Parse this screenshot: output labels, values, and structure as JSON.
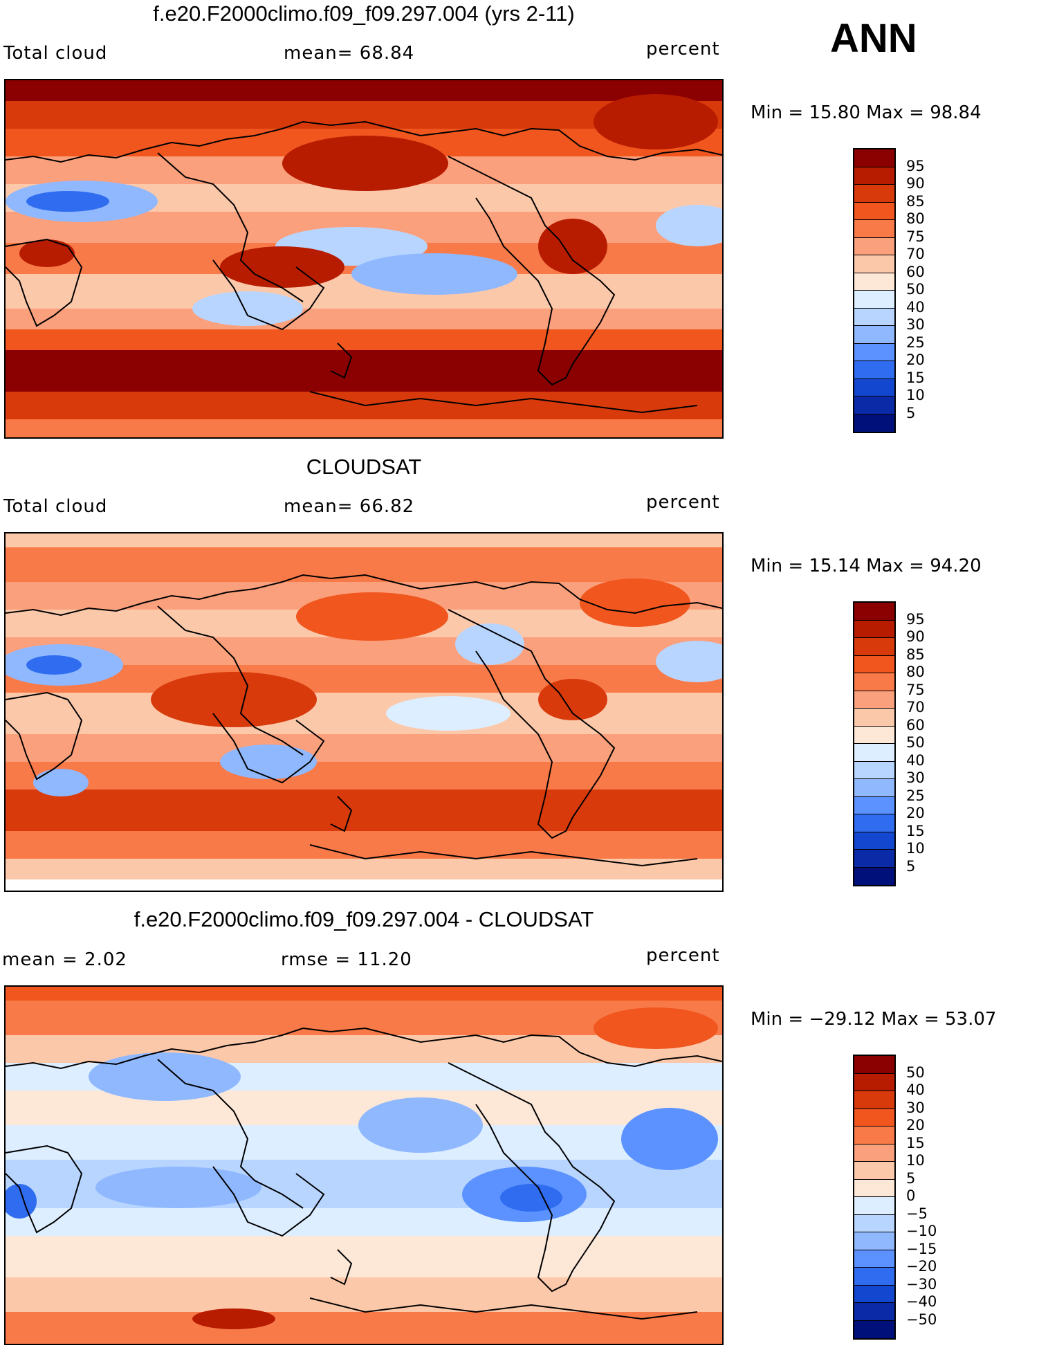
{
  "season": "ANN",
  "panels": [
    {
      "id": "model",
      "title": "f.e20.F2000climo.f09_f09.297.004 (yrs 2-11)",
      "left_label": "Total cloud",
      "center_label": "mean=   68.84",
      "right_label": "percent",
      "minmax": "Min =   15.80 Max =   98.84",
      "colorbar": {
        "colors": [
          "#8b0000",
          "#b71c00",
          "#d83a0c",
          "#f0561e",
          "#f97a49",
          "#fba07c",
          "#fcc8aa",
          "#fde8d8",
          "#dceeff",
          "#b8d5ff",
          "#8fb8ff",
          "#5b92ff",
          "#2f6cf0",
          "#1447d0",
          "#0a2aa8",
          "#00107a"
        ],
        "labels": [
          "95",
          "90",
          "85",
          "80",
          "75",
          "70",
          "60",
          "50",
          "40",
          "30",
          "25",
          "20",
          "15",
          "10",
          "5"
        ]
      },
      "field_scale": "abs"
    },
    {
      "id": "obs",
      "title": "CLOUDSAT",
      "left_label": "Total cloud",
      "center_label": "mean=   66.82",
      "right_label": "percent",
      "minmax": "Min =   15.14 Max =   94.20",
      "colorbar": {
        "colors": [
          "#8b0000",
          "#b71c00",
          "#d83a0c",
          "#f0561e",
          "#f97a49",
          "#fba07c",
          "#fcc8aa",
          "#fde8d8",
          "#dceeff",
          "#b8d5ff",
          "#8fb8ff",
          "#5b92ff",
          "#2f6cf0",
          "#1447d0",
          "#0a2aa8",
          "#00107a"
        ],
        "labels": [
          "95",
          "90",
          "85",
          "80",
          "75",
          "70",
          "60",
          "50",
          "40",
          "30",
          "25",
          "20",
          "15",
          "10",
          "5"
        ]
      },
      "field_scale": "abs"
    },
    {
      "id": "diff",
      "title": "f.e20.F2000climo.f09_f09.297.004 - CLOUDSAT",
      "left_label": "mean =    2.02",
      "center_label": "rmse =   11.20",
      "right_label": "percent",
      "minmax": "Min = −29.12 Max =   53.07",
      "colorbar": {
        "colors": [
          "#8b0000",
          "#b71c00",
          "#d83a0c",
          "#f0561e",
          "#f97a49",
          "#fba07c",
          "#fcc8aa",
          "#fde8d8",
          "#dceeff",
          "#b8d5ff",
          "#8fb8ff",
          "#5b92ff",
          "#2f6cf0",
          "#1447d0",
          "#0a2aa8",
          "#00107a"
        ],
        "labels": [
          "50",
          "40",
          "30",
          "20",
          "15",
          "10",
          "5",
          "0",
          "−5",
          "−10",
          "−15",
          "−20",
          "−30",
          "−40",
          "−50"
        ]
      },
      "field_scale": "diff"
    }
  ]
}
